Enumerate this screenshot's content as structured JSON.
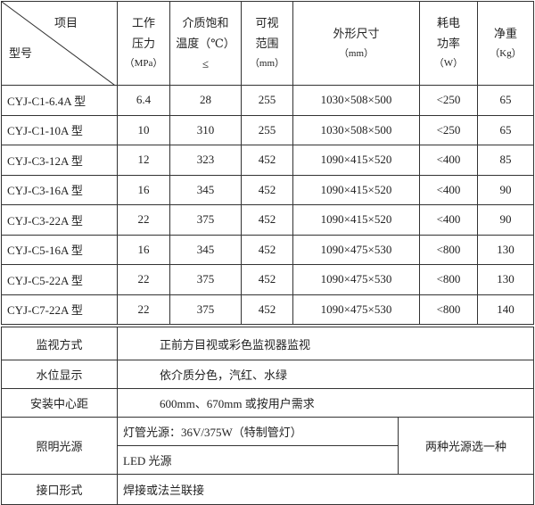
{
  "header": {
    "corner_top": "项目",
    "corner_bottom": "型号",
    "columns": [
      [
        "工作",
        "压力",
        "（MPa）"
      ],
      [
        "介质饱和",
        "温度（℃）",
        "≤"
      ],
      [
        "可视",
        "范围",
        "（mm）"
      ],
      [
        "外形尺寸",
        "（mm）"
      ],
      [
        "耗电",
        "功率",
        "（W）"
      ],
      [
        "净重",
        "（Kg）"
      ]
    ]
  },
  "rows": [
    [
      "CYJ-C1-6.4A 型",
      "6.4",
      "28",
      "255",
      "1030×508×500",
      "<250",
      "65"
    ],
    [
      "CYJ-C1-10A 型",
      "10",
      "310",
      "255",
      "1030×508×500",
      "<250",
      "65"
    ],
    [
      "CYJ-C3-12A 型",
      "12",
      "323",
      "452",
      "1090×415×520",
      "<400",
      "85"
    ],
    [
      "CYJ-C3-16A 型",
      "16",
      "345",
      "452",
      "1090×415×520",
      "<400",
      "90"
    ],
    [
      "CYJ-C3-22A 型",
      "22",
      "375",
      "452",
      "1090×415×520",
      "<400",
      "90"
    ],
    [
      "CYJ-C5-16A 型",
      "16",
      "345",
      "452",
      "1090×475×530",
      "<800",
      "130"
    ],
    [
      "CYJ-C5-22A 型",
      "22",
      "375",
      "452",
      "1090×475×530",
      "<800",
      "130"
    ],
    [
      "CYJ-C7-22A 型",
      "22",
      "375",
      "452",
      "1090×475×530",
      "<800",
      "140"
    ]
  ],
  "specs": {
    "monitor": {
      "label": "监视方式",
      "value": "正前方目视或彩色监视器监视"
    },
    "level": {
      "label": "水位显示",
      "value": "依介质分色，汽红、水绿"
    },
    "distance": {
      "label": "安装中心距",
      "value": "600mm、670mm 或按用户需求"
    },
    "light": {
      "label": "照明光源",
      "option1": "灯管光源：36V/375W（特制管灯）",
      "option2": "LED 光源",
      "note": "两种光源选一种"
    },
    "interface": {
      "label": "接口形式",
      "value": "焊接或法兰联接"
    }
  }
}
